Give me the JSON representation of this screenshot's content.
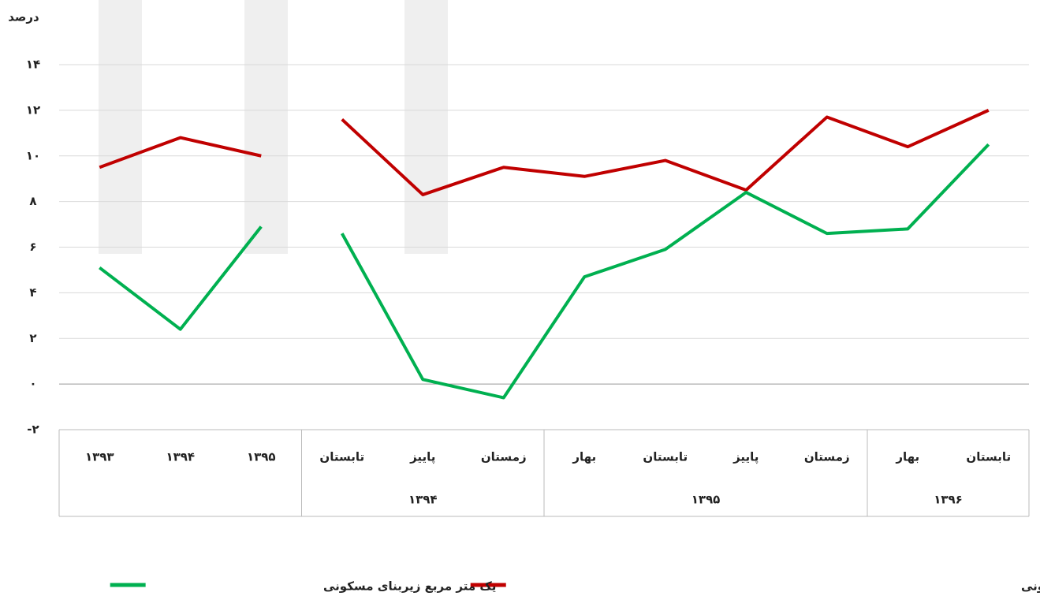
{
  "chart_data": {
    "type": "line",
    "y_label": "درصد",
    "categories": [
      "۱۳۹۳",
      "۱۳۹۴",
      "۱۳۹۵",
      "تابستان",
      "پاییز",
      "زمستان",
      "بهار",
      "تابستان",
      "پاییز",
      "زمستان",
      "بهار",
      "تابستان"
    ],
    "category_groups": [
      null,
      null,
      null,
      "۱۳۹۴",
      "۱۳۹۴",
      "۱۳۹۴",
      "۱۳۹۵",
      "۱۳۹۵",
      "۱۳۹۵",
      "۱۳۹۵",
      "۱۳۹۶",
      "۱۳۹۶"
    ],
    "series": [
      {
        "name": "اجاره ماهانه به علاوه سه درصد ودیعه پرداختی برای اجاره یک متر مربع زیربنای مسکونی",
        "color": "#c00000",
        "values": [
          9.5,
          10.8,
          10.0,
          11.6,
          8.3,
          9.5,
          9.1,
          9.8,
          8.5,
          11.7,
          10.4,
          12.0
        ]
      },
      {
        "name": "یک متر مربع زیربنای مسکونی",
        "color": "#00b050",
        "values": [
          5.1,
          2.4,
          6.9,
          6.6,
          0.2,
          -0.6,
          4.7,
          5.9,
          8.4,
          6.6,
          6.8,
          10.5
        ]
      }
    ],
    "ylim": [
      -2,
      14
    ],
    "yticks": [
      {
        "value": -2,
        "label": "-۲"
      },
      {
        "value": 0,
        "label": "۰"
      },
      {
        "value": 2,
        "label": "۲"
      },
      {
        "value": 4,
        "label": "۴"
      },
      {
        "value": 6,
        "label": "۶"
      },
      {
        "value": 8,
        "label": "۸"
      },
      {
        "value": 10,
        "label": "۱۰"
      },
      {
        "value": 12,
        "label": "۱۲"
      },
      {
        "value": 14,
        "label": "۱۴"
      }
    ],
    "grid": true
  }
}
